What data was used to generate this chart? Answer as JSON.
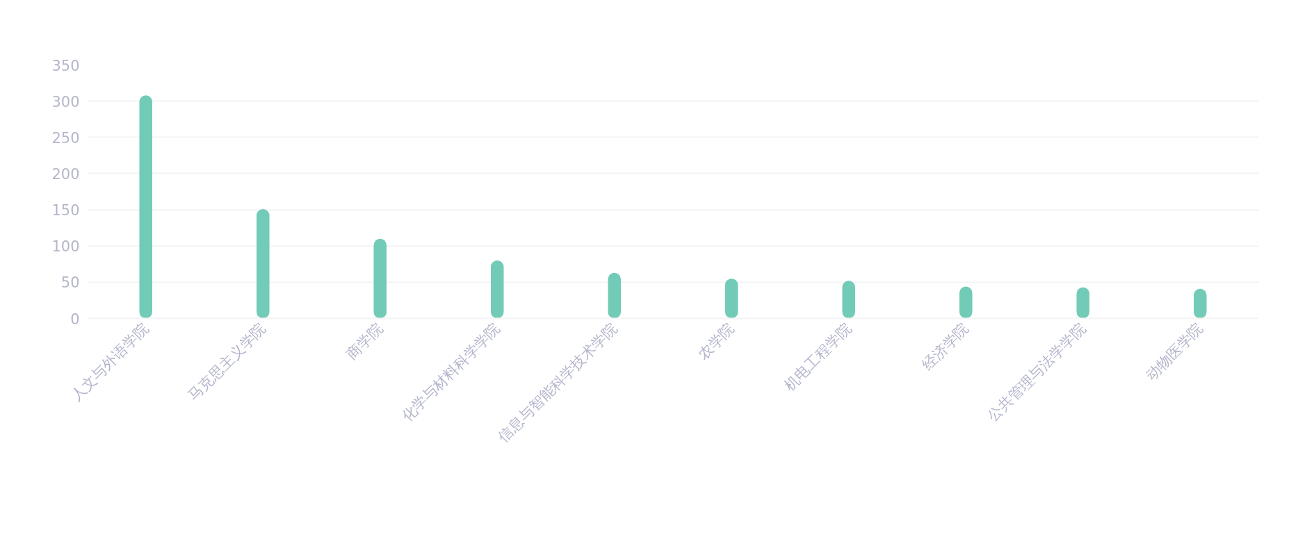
{
  "chart_data": {
    "type": "bar",
    "categories": [
      "人文与外语学院",
      "马克思主义学院",
      "商学院",
      "化学与材料科学学院",
      "信息与智能科学技术学院",
      "农学院",
      "机电工程学院",
      "经济学院",
      "公共管理与法学学院",
      "动物医学院"
    ],
    "values": [
      308,
      151,
      110,
      80,
      63,
      55,
      52,
      44,
      43,
      41
    ],
    "color": "#72cbb7",
    "ylim": [
      0,
      350
    ],
    "yticks": [
      0,
      50,
      100,
      150,
      200,
      250,
      300,
      350
    ],
    "grid": "y"
  }
}
